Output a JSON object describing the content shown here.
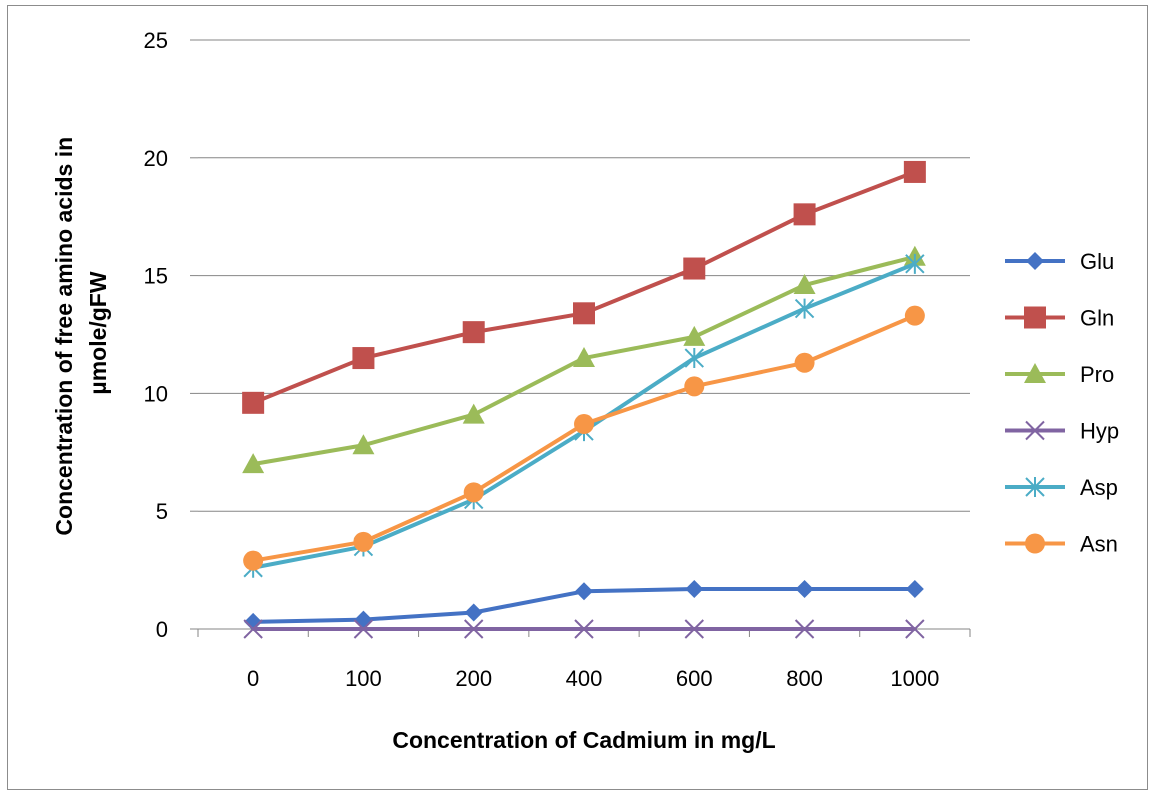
{
  "chart_data": {
    "type": "line",
    "categories": [
      "0",
      "100",
      "200",
      "400",
      "600",
      "800",
      "1000"
    ],
    "xlabel": "Concentration of Cadmium in mg/L",
    "ylabel_lines": [
      "Concentration of free amino acids in",
      "µmole/gFW"
    ],
    "ylim": [
      0,
      25
    ],
    "yticks": [
      0,
      5,
      10,
      15,
      20,
      25
    ],
    "grid": true,
    "legend_position": "right",
    "series": [
      {
        "name": "Glu",
        "color": "#4472C4",
        "marker": "diamond",
        "values": [
          0.3,
          0.4,
          0.7,
          1.6,
          1.7,
          1.7,
          1.7
        ]
      },
      {
        "name": "Gln",
        "color": "#C0504D",
        "marker": "square",
        "values": [
          9.6,
          11.5,
          12.6,
          13.4,
          15.3,
          17.6,
          19.4
        ]
      },
      {
        "name": "Pro",
        "color": "#9BBB59",
        "marker": "triangle",
        "values": [
          7.0,
          7.8,
          9.1,
          11.5,
          12.4,
          14.6,
          15.8
        ]
      },
      {
        "name": "Hyp",
        "color": "#8064A2",
        "marker": "x",
        "values": [
          0,
          0,
          0,
          0,
          0,
          0,
          0
        ]
      },
      {
        "name": "Asp",
        "color": "#4BACC6",
        "marker": "asterisk",
        "values": [
          2.6,
          3.5,
          5.5,
          8.4,
          11.5,
          13.6,
          15.5
        ]
      },
      {
        "name": "Asn",
        "color": "#F79646",
        "marker": "circle",
        "values": [
          2.9,
          3.7,
          5.8,
          8.7,
          10.3,
          11.3,
          13.3
        ]
      }
    ]
  }
}
